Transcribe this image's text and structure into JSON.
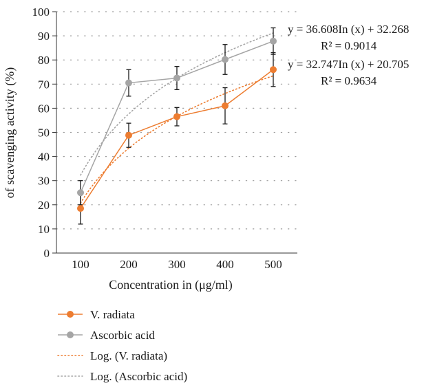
{
  "chart_data": {
    "type": "line",
    "title": "",
    "xlabel": "Concentration in (μg/ml)",
    "ylabel": "of scavenging activity (%)",
    "categories": [
      100,
      200,
      300,
      400,
      500
    ],
    "ylim": [
      0,
      100
    ],
    "yticks": [
      0,
      10,
      20,
      30,
      40,
      50,
      60,
      70,
      80,
      90,
      100
    ],
    "grid": "horizontal-dotted",
    "legend_position": "bottom-left",
    "series": [
      {
        "name": "V. radiata",
        "color": "#ed7d31",
        "marker": "circle",
        "values": [
          18.5,
          48.8,
          56.5,
          61.0,
          76.0
        ],
        "errors": [
          6.5,
          5.0,
          3.8,
          7.5,
          7.0
        ]
      },
      {
        "name": "Ascorbic acid",
        "color": "#a5a5a5",
        "marker": "circle",
        "values": [
          25.0,
          70.5,
          72.5,
          80.2,
          87.8
        ],
        "errors": [
          5.0,
          5.5,
          4.8,
          6.2,
          5.5
        ]
      }
    ],
    "trendlines": [
      {
        "name": "Log. (V. radiata)",
        "color": "#ed7d31",
        "style": "dotted",
        "a": 32.747,
        "b": 20.705,
        "equation": "y = 32.747In (x) + 20.705",
        "r2_label": "R² = 0.9634"
      },
      {
        "name": "Log. (Ascorbic acid)",
        "color": "#a5a5a5",
        "style": "dotted",
        "a": 36.608,
        "b": 32.268,
        "equation": "y = 36.608In (x) + 32.268",
        "r2_label": "R² = 0.9014"
      }
    ]
  }
}
